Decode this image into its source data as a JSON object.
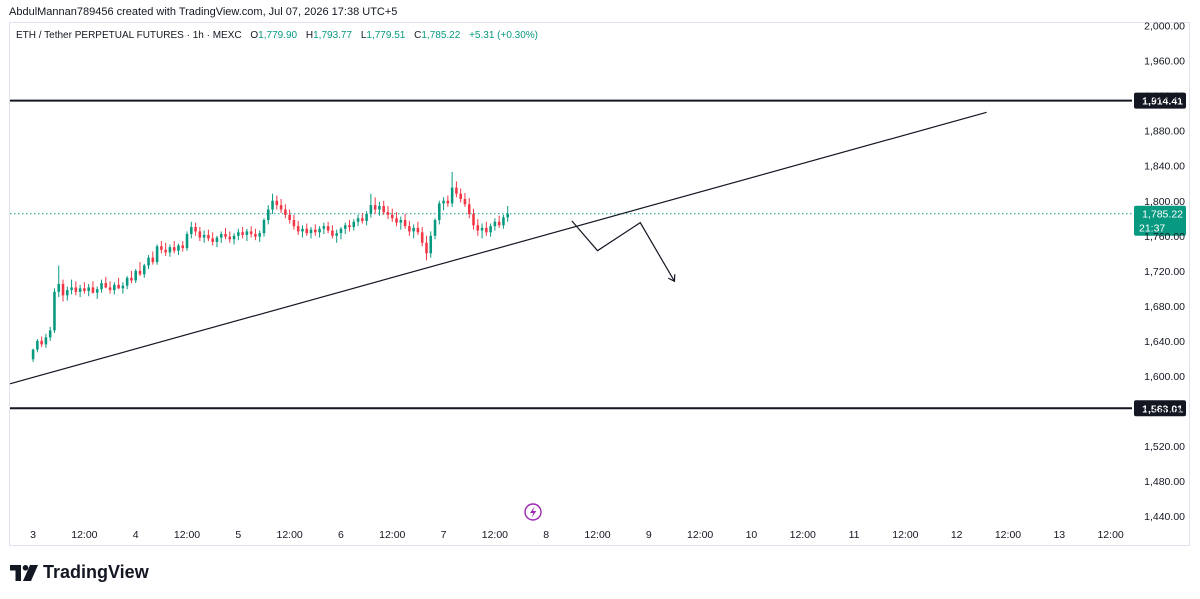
{
  "header": {
    "author_line": "AbdulMannan789456 created with TradingView.com, Jul 07, 2026 17:38 UTC+5"
  },
  "legend": {
    "symbol": "ETH / Tether PERPETUAL FUTURES · 1h · MEXC",
    "open_label": "O",
    "open": "1,779.90",
    "high_label": "H",
    "high": "1,793.77",
    "low_label": "L",
    "low": "1,779.51",
    "close_label": "C",
    "close": "1,785.22",
    "change": "+5.31 (+0.30%)"
  },
  "colors": {
    "up": "#089981",
    "down": "#f23645",
    "text": "#131722",
    "axis_text": "#131722",
    "border": "#e0e3eb",
    "lightning": "#9c27b0"
  },
  "chart_data": {
    "type": "candlestick",
    "x_tick_labels": [
      "3",
      "12:00",
      "4",
      "12:00",
      "5",
      "12:00",
      "6",
      "12:00",
      "7",
      "12:00",
      "8",
      "12:00",
      "9",
      "12:00",
      "10",
      "12:00",
      "11",
      "12:00",
      "12",
      "12:00",
      "13",
      "12:00"
    ],
    "y_tick_labels": [
      "2,000.00",
      "1,960.00",
      "1,920.00",
      "1,880.00",
      "1,840.00",
      "1,800.00",
      "1,760.00",
      "1,720.00",
      "1,680.00",
      "1,640.00",
      "1,600.00",
      "1,560.00",
      "1,520.00",
      "1,480.00",
      "1,440.00"
    ],
    "y_ticks": [
      2000,
      1960,
      1920,
      1880,
      1840,
      1800,
      1760,
      1720,
      1680,
      1640,
      1600,
      1560,
      1520,
      1480,
      1440
    ],
    "y_range": [
      1432,
      2003
    ],
    "x_range_hours": [
      -5.4,
      257
    ],
    "horizontal_levels": [
      {
        "price": 1914.41,
        "label": "1,914.41"
      },
      {
        "price": 1563.01,
        "label": "1,563.01"
      }
    ],
    "current_price": {
      "price": 1785.22,
      "label": "1,785.22",
      "countdown": "21:37"
    },
    "trendline": {
      "from": {
        "hour": -5.4,
        "price": 1591
      },
      "to": {
        "hour": 223,
        "price": 1901
      }
    },
    "projection_path": [
      {
        "hour": 126,
        "price": 1777
      },
      {
        "hour": 132,
        "price": 1743
      },
      {
        "hour": 142,
        "price": 1775
      },
      {
        "hour": 150,
        "price": 1708
      }
    ],
    "candles": [
      [
        1619,
        1631,
        1616,
        1630
      ],
      [
        1630,
        1642,
        1627,
        1640
      ],
      [
        1640,
        1645,
        1633,
        1636
      ],
      [
        1636,
        1648,
        1632,
        1644
      ],
      [
        1644,
        1656,
        1640,
        1652
      ],
      [
        1652,
        1700,
        1649,
        1696
      ],
      [
        1696,
        1726,
        1690,
        1705
      ],
      [
        1705,
        1710,
        1685,
        1692
      ],
      [
        1692,
        1702,
        1686,
        1698
      ],
      [
        1698,
        1710,
        1693,
        1701
      ],
      [
        1701,
        1708,
        1692,
        1696
      ],
      [
        1696,
        1704,
        1690,
        1700
      ],
      [
        1700,
        1707,
        1694,
        1697
      ],
      [
        1697,
        1705,
        1691,
        1701
      ],
      [
        1701,
        1708,
        1694,
        1695
      ],
      [
        1695,
        1702,
        1688,
        1699
      ],
      [
        1699,
        1710,
        1695,
        1706
      ],
      [
        1706,
        1713,
        1700,
        1701
      ],
      [
        1701,
        1708,
        1694,
        1698
      ],
      [
        1698,
        1707,
        1693,
        1704
      ],
      [
        1704,
        1712,
        1699,
        1700
      ],
      [
        1700,
        1707,
        1694,
        1703
      ],
      [
        1703,
        1714,
        1699,
        1712
      ],
      [
        1712,
        1720,
        1706,
        1709
      ],
      [
        1709,
        1722,
        1706,
        1720
      ],
      [
        1720,
        1730,
        1714,
        1716
      ],
      [
        1716,
        1728,
        1712,
        1726
      ],
      [
        1726,
        1738,
        1722,
        1735
      ],
      [
        1735,
        1742,
        1727,
        1730
      ],
      [
        1730,
        1750,
        1727,
        1748
      ],
      [
        1748,
        1754,
        1740,
        1744
      ],
      [
        1744,
        1752,
        1737,
        1741
      ],
      [
        1741,
        1750,
        1736,
        1747
      ],
      [
        1747,
        1754,
        1740,
        1743
      ],
      [
        1743,
        1751,
        1738,
        1749
      ],
      [
        1749,
        1754,
        1742,
        1746
      ],
      [
        1746,
        1765,
        1743,
        1762
      ],
      [
        1762,
        1776,
        1757,
        1770
      ],
      [
        1770,
        1775,
        1760,
        1765
      ],
      [
        1765,
        1770,
        1754,
        1758
      ],
      [
        1758,
        1766,
        1752,
        1761
      ],
      [
        1761,
        1767,
        1754,
        1757
      ],
      [
        1757,
        1764,
        1749,
        1753
      ],
      [
        1753,
        1760,
        1747,
        1758
      ],
      [
        1758,
        1765,
        1752,
        1762
      ],
      [
        1762,
        1769,
        1756,
        1759
      ],
      [
        1759,
        1765,
        1752,
        1756
      ],
      [
        1756,
        1763,
        1750,
        1760
      ],
      [
        1760,
        1768,
        1755,
        1764
      ],
      [
        1764,
        1770,
        1757,
        1761
      ],
      [
        1761,
        1768,
        1754,
        1765
      ],
      [
        1765,
        1771,
        1758,
        1762
      ],
      [
        1762,
        1768,
        1755,
        1759
      ],
      [
        1759,
        1766,
        1753,
        1763
      ],
      [
        1763,
        1780,
        1759,
        1778
      ],
      [
        1778,
        1795,
        1773,
        1790
      ],
      [
        1790,
        1808,
        1785,
        1800
      ],
      [
        1800,
        1806,
        1790,
        1795
      ],
      [
        1795,
        1802,
        1786,
        1790
      ],
      [
        1790,
        1796,
        1780,
        1784
      ],
      [
        1784,
        1790,
        1774,
        1778
      ],
      [
        1778,
        1784,
        1767,
        1771
      ],
      [
        1771,
        1777,
        1761,
        1765
      ],
      [
        1765,
        1772,
        1758,
        1768
      ],
      [
        1768,
        1774,
        1760,
        1763
      ],
      [
        1763,
        1770,
        1757,
        1767
      ],
      [
        1767,
        1773,
        1760,
        1764
      ],
      [
        1764,
        1771,
        1758,
        1768
      ],
      [
        1768,
        1775,
        1762,
        1771
      ],
      [
        1771,
        1776,
        1763,
        1766
      ],
      [
        1766,
        1772,
        1757,
        1760
      ],
      [
        1760,
        1767,
        1752,
        1763
      ],
      [
        1763,
        1770,
        1756,
        1768
      ],
      [
        1768,
        1775,
        1762,
        1772
      ],
      [
        1772,
        1778,
        1765,
        1770
      ],
      [
        1770,
        1779,
        1766,
        1776
      ],
      [
        1776,
        1784,
        1771,
        1780
      ],
      [
        1780,
        1786,
        1774,
        1777
      ],
      [
        1777,
        1788,
        1772,
        1785
      ],
      [
        1785,
        1808,
        1781,
        1795
      ],
      [
        1795,
        1804,
        1785,
        1790
      ],
      [
        1790,
        1799,
        1783,
        1794
      ],
      [
        1794,
        1800,
        1784,
        1787
      ],
      [
        1787,
        1794,
        1779,
        1784
      ],
      [
        1784,
        1791,
        1776,
        1780
      ],
      [
        1780,
        1787,
        1771,
        1775
      ],
      [
        1775,
        1782,
        1767,
        1778
      ],
      [
        1778,
        1785,
        1768,
        1771
      ],
      [
        1771,
        1777,
        1760,
        1765
      ],
      [
        1765,
        1773,
        1757,
        1769
      ],
      [
        1769,
        1776,
        1761,
        1764
      ],
      [
        1764,
        1770,
        1748,
        1752
      ],
      [
        1752,
        1760,
        1732,
        1740
      ],
      [
        1740,
        1765,
        1735,
        1760
      ],
      [
        1760,
        1780,
        1756,
        1778
      ],
      [
        1778,
        1800,
        1773,
        1797
      ],
      [
        1797,
        1804,
        1789,
        1800
      ],
      [
        1800,
        1806,
        1793,
        1797
      ],
      [
        1797,
        1833,
        1793,
        1815
      ],
      [
        1815,
        1822,
        1804,
        1808
      ],
      [
        1808,
        1814,
        1798,
        1802
      ],
      [
        1802,
        1809,
        1793,
        1796
      ],
      [
        1796,
        1803,
        1780,
        1785
      ],
      [
        1785,
        1791,
        1767,
        1772
      ],
      [
        1772,
        1779,
        1760,
        1766
      ],
      [
        1766,
        1774,
        1757,
        1769
      ],
      [
        1769,
        1776,
        1760,
        1764
      ],
      [
        1764,
        1774,
        1759,
        1771
      ],
      [
        1771,
        1780,
        1766,
        1776
      ],
      [
        1776,
        1783,
        1769,
        1772
      ],
      [
        1772,
        1784,
        1768,
        1781
      ],
      [
        1781,
        1794,
        1776,
        1785
      ]
    ]
  }
}
